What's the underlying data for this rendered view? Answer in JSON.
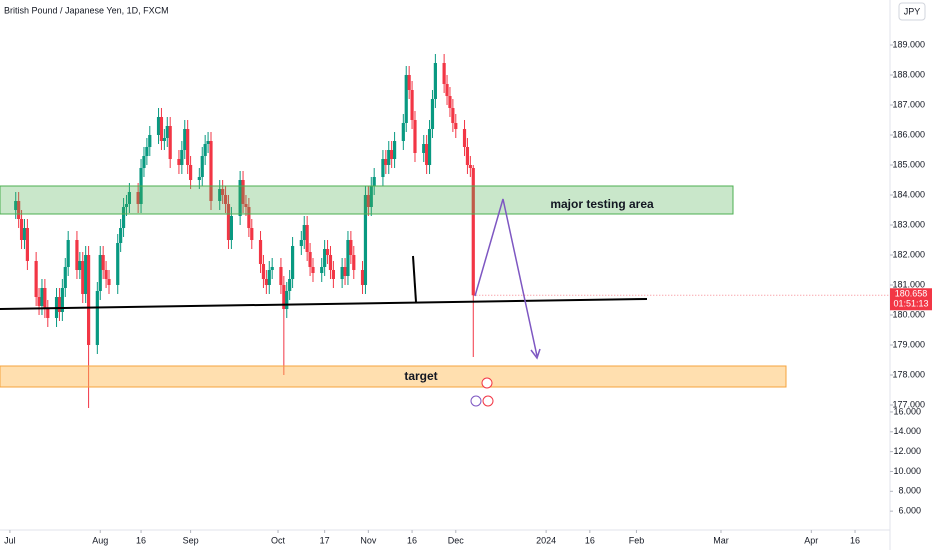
{
  "chart_data": {
    "type": "candlestick",
    "title": "British Pound / Japanese Yen, 1D, FXCM",
    "currency": "JPY",
    "x": [
      2,
      3,
      4,
      5,
      6,
      9,
      10,
      11,
      12,
      13,
      16,
      17,
      18,
      19,
      20,
      23,
      24,
      25,
      26,
      27,
      30,
      31,
      32,
      33,
      34,
      37,
      38,
      39,
      40,
      41,
      44,
      45,
      46,
      47,
      48,
      51,
      52,
      53,
      54,
      55,
      58,
      59,
      60,
      61,
      62,
      65,
      66,
      67,
      68,
      69,
      72,
      73,
      74,
      75,
      76,
      79,
      80,
      81,
      82,
      83,
      86,
      87,
      88,
      89,
      90,
      93,
      94,
      95,
      96,
      97,
      100,
      101,
      102,
      103,
      104,
      107,
      108,
      109,
      110,
      111,
      114,
      115,
      116,
      117,
      118,
      121,
      122,
      123,
      124,
      125,
      128,
      129,
      130,
      131,
      132,
      135,
      136,
      137,
      138,
      139,
      142,
      143,
      144,
      145,
      146,
      149,
      150,
      151,
      152,
      153,
      156,
      157,
      158,
      159
    ],
    "open": [
      183.5,
      183.8,
      183.2,
      182.5,
      182.9,
      181.8,
      180.6,
      180.3,
      180.9,
      180.2,
      179.9,
      180.6,
      180.1,
      180.9,
      181.6,
      182.5,
      181.5,
      181.8,
      180.7,
      182.0,
      179.0,
      180.8,
      182.0,
      181.5,
      181.2,
      181.0,
      182.4,
      182.9,
      183.6,
      183.7,
      184.1,
      183.7,
      184.9,
      185.3,
      185.6,
      186.0,
      186.6,
      185.8,
      185.9,
      186.3,
      185.2,
      185.0,
      185.5,
      186.2,
      185.0,
      184.5,
      184.6,
      185.3,
      185.7,
      185.8,
      183.8,
      184.2,
      184.0,
      183.7,
      182.5,
      183.3,
      184.5,
      183.7,
      183.6,
      182.9,
      182.5,
      181.7,
      181.2,
      181.0,
      181.5,
      181.6,
      181.0,
      180.2,
      180.8,
      181.2,
      182.3,
      182.5,
      183.0,
      182.1,
      181.6,
      181.4,
      181.6,
      182.2,
      182.0,
      181.5,
      181.2,
      181.6,
      181.3,
      182.5,
      182.0,
      181.5,
      181.0,
      184.0,
      183.6,
      184.3,
      184.6,
      185.2,
      185.0,
      185.5,
      185.2,
      185.8,
      186.4,
      188.0,
      187.5,
      186.5,
      185.4,
      185.7,
      185.0,
      186.2,
      187.2,
      188.4,
      187.7,
      187.3,
      186.9,
      186.4,
      186.2,
      185.6,
      185.0,
      184.9
    ],
    "high": [
      184.1,
      184.1,
      183.5,
      183.2,
      183.2,
      182.1,
      180.9,
      181.2,
      181.2,
      180.5,
      180.9,
      180.9,
      181.2,
      181.9,
      182.8,
      182.8,
      182.1,
      182.1,
      182.3,
      182.3,
      181.1,
      182.3,
      182.3,
      181.8,
      181.5,
      182.7,
      183.2,
      183.9,
      184.0,
      184.4,
      184.4,
      185.2,
      185.6,
      185.9,
      186.3,
      186.9,
      186.9,
      186.2,
      186.6,
      186.6,
      185.5,
      185.8,
      186.5,
      186.5,
      185.3,
      184.9,
      185.6,
      186.0,
      186.1,
      186.1,
      184.5,
      184.5,
      184.3,
      184.0,
      183.6,
      184.8,
      184.8,
      184.0,
      183.9,
      183.2,
      182.8,
      182.0,
      181.5,
      181.8,
      181.9,
      181.9,
      181.3,
      181.1,
      181.5,
      182.6,
      182.8,
      183.3,
      183.3,
      182.4,
      181.9,
      181.9,
      182.5,
      182.5,
      182.3,
      181.8,
      181.9,
      181.9,
      182.8,
      182.8,
      182.3,
      181.8,
      184.3,
      184.3,
      184.6,
      184.9,
      185.5,
      185.5,
      185.8,
      185.8,
      186.1,
      186.7,
      188.3,
      188.3,
      187.8,
      186.8,
      186.0,
      186.0,
      186.5,
      187.5,
      188.7,
      188.7,
      188.0,
      187.6,
      187.2,
      186.7,
      186.5,
      185.9,
      185.3,
      185.0
    ],
    "low": [
      183.2,
      182.9,
      182.2,
      182.2,
      181.5,
      180.3,
      180.0,
      180.0,
      179.9,
      179.6,
      179.6,
      179.8,
      179.8,
      180.6,
      181.3,
      181.2,
      181.2,
      180.4,
      180.4,
      176.9,
      178.7,
      180.5,
      181.2,
      180.9,
      180.7,
      180.7,
      182.1,
      182.6,
      183.3,
      183.4,
      183.4,
      183.4,
      184.6,
      185.0,
      185.3,
      185.7,
      185.5,
      185.5,
      185.6,
      184.9,
      184.7,
      184.7,
      185.2,
      184.7,
      184.2,
      184.2,
      184.3,
      185.0,
      185.4,
      183.5,
      183.5,
      183.7,
      183.4,
      182.2,
      182.2,
      183.0,
      183.4,
      183.3,
      182.6,
      182.2,
      181.4,
      180.9,
      180.7,
      180.7,
      181.2,
      180.7,
      178.0,
      179.9,
      180.5,
      180.9,
      182.0,
      182.2,
      181.8,
      181.3,
      181.1,
      181.1,
      181.3,
      181.7,
      181.2,
      180.9,
      180.9,
      181.0,
      181.0,
      181.7,
      181.2,
      180.7,
      180.7,
      183.3,
      183.3,
      184.0,
      184.3,
      184.7,
      184.7,
      184.9,
      184.9,
      185.5,
      186.1,
      187.2,
      186.2,
      185.1,
      185.1,
      184.7,
      184.7,
      185.9,
      186.9,
      187.4,
      187.0,
      186.6,
      186.1,
      185.9,
      185.3,
      184.7,
      184.6,
      178.6
    ],
    "close": [
      183.8,
      183.2,
      182.5,
      182.9,
      181.8,
      180.6,
      180.3,
      180.9,
      180.2,
      179.9,
      180.6,
      180.1,
      180.9,
      181.6,
      182.5,
      181.5,
      181.8,
      180.7,
      182.0,
      179.0,
      180.8,
      182.0,
      181.5,
      181.2,
      181.0,
      182.4,
      182.9,
      183.6,
      183.7,
      184.1,
      183.7,
      184.9,
      185.3,
      185.6,
      186.0,
      186.6,
      185.8,
      185.9,
      186.3,
      185.2,
      185.0,
      185.5,
      186.2,
      185.0,
      184.5,
      184.6,
      185.3,
      185.7,
      185.8,
      183.8,
      184.2,
      184.0,
      183.7,
      182.5,
      183.3,
      184.5,
      183.7,
      183.6,
      182.9,
      182.5,
      181.7,
      181.2,
      181.0,
      181.5,
      181.6,
      181.0,
      180.2,
      180.8,
      181.2,
      182.3,
      182.5,
      183.0,
      182.1,
      181.6,
      181.4,
      181.6,
      182.2,
      182.0,
      181.5,
      181.2,
      181.6,
      181.3,
      182.5,
      182.0,
      181.5,
      181.0,
      184.0,
      183.6,
      184.3,
      184.6,
      185.2,
      185.0,
      185.5,
      185.2,
      185.8,
      186.4,
      188.0,
      187.5,
      186.5,
      185.4,
      185.7,
      185.0,
      186.2,
      187.2,
      188.4,
      187.7,
      187.3,
      186.9,
      186.4,
      186.2,
      185.6,
      185.0,
      184.9,
      180.658
    ],
    "up_color": "#089981",
    "down_color": "#f23645",
    "xlim": [
      -3.4,
      302
    ],
    "xticks": [
      {
        "value": 0,
        "label": "Jul"
      },
      {
        "value": 31,
        "label": "Aug"
      },
      {
        "value": 45,
        "label": "16"
      },
      {
        "value": 62,
        "label": "Sep"
      },
      {
        "value": 92,
        "label": "Oct"
      },
      {
        "value": 108,
        "label": "17"
      },
      {
        "value": 123,
        "label": "Nov"
      },
      {
        "value": 138,
        "label": "16"
      },
      {
        "value": 153,
        "label": "Dec"
      },
      {
        "value": 184,
        "label": "2024"
      },
      {
        "value": 199,
        "label": "16"
      },
      {
        "value": 215,
        "label": "Feb"
      },
      {
        "value": 244,
        "label": "Mar"
      },
      {
        "value": 275,
        "label": "Apr"
      },
      {
        "value": 290,
        "label": "16"
      }
    ],
    "ylim": [
      177,
      190.5
    ],
    "yticks": [
      {
        "value": 177,
        "label": "177.000"
      },
      {
        "value": 178,
        "label": "178.000"
      },
      {
        "value": 179,
        "label": "179.000"
      },
      {
        "value": 180,
        "label": "180.000"
      },
      {
        "value": 181,
        "label": "181.000"
      },
      {
        "value": 182,
        "label": "182.000"
      },
      {
        "value": 183,
        "label": "183.000"
      },
      {
        "value": 184,
        "label": "184.000"
      },
      {
        "value": 185,
        "label": "185.000"
      },
      {
        "value": 186,
        "label": "186.000"
      },
      {
        "value": 187,
        "label": "187.000"
      },
      {
        "value": 188,
        "label": "188.000"
      },
      {
        "value": 189,
        "label": "189.000"
      }
    ],
    "y2lim": [
      4.1,
      16.7
    ],
    "y2ticks": [
      {
        "value": 16,
        "label": "16.000"
      },
      {
        "value": 14,
        "label": "14.000"
      },
      {
        "value": 12,
        "label": "12.000"
      },
      {
        "value": 10,
        "label": "10.000"
      },
      {
        "value": 8,
        "label": "8.000"
      },
      {
        "value": 6,
        "label": "6.000"
      }
    ],
    "annotations": [
      "major testing area",
      "target"
    ],
    "countdown": "01:51:13"
  }
}
